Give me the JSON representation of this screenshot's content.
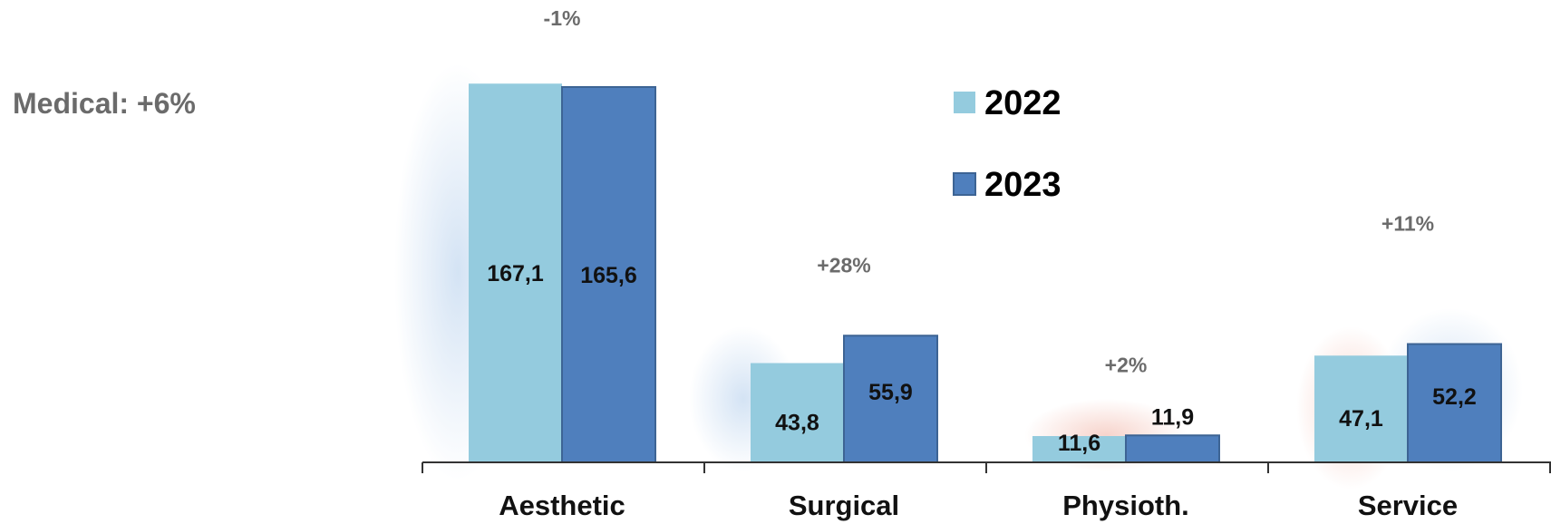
{
  "headline": "Medical: +6%",
  "colors": {
    "series_2022": "#94cbde",
    "series_2023": "#4f7fbd",
    "series_2023_stroke": "#3d6494",
    "axis": "#333333",
    "growth_text": "#6b6b6b"
  },
  "chart_data": {
    "type": "bar",
    "title": "",
    "xlabel": "",
    "ylabel": "",
    "categories": [
      "Aesthetic",
      "Surgical",
      "Physioth.",
      "Service"
    ],
    "series": [
      {
        "name": "2022",
        "values": [
          167.1,
          43.8,
          11.6,
          47.1
        ],
        "labels": [
          "167,1",
          "43,8",
          "11,6",
          "47,1"
        ]
      },
      {
        "name": "2023",
        "values": [
          165.6,
          55.9,
          11.9,
          52.2
        ],
        "labels": [
          "165,6",
          "55,9",
          "11,9",
          "52,2"
        ]
      }
    ],
    "growth_labels": [
      "-1%",
      "+28%",
      "+2%",
      "+11%"
    ],
    "ylim": [
      0,
      172
    ],
    "grid": false,
    "legend_position": "top-center"
  }
}
